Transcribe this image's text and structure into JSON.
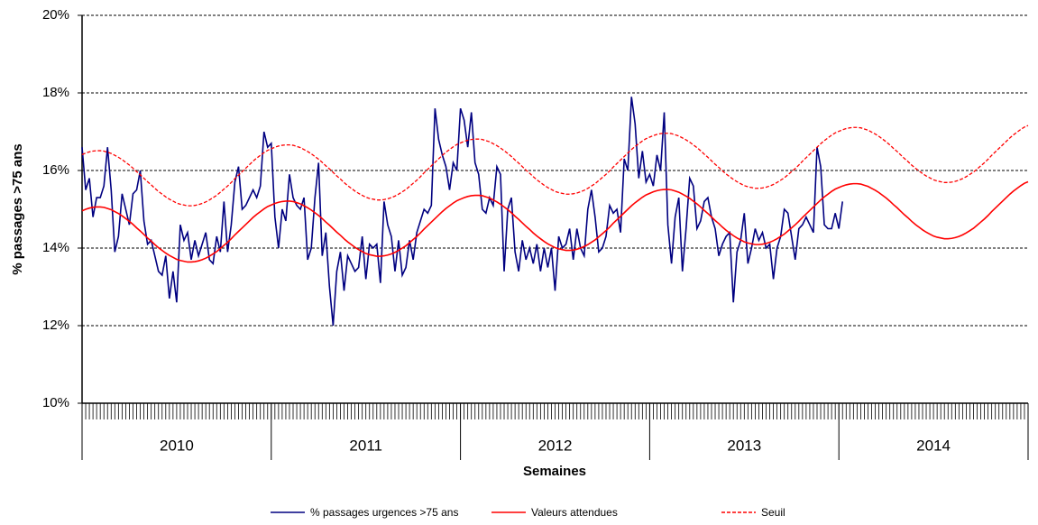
{
  "chart_data": {
    "type": "line",
    "y_label": "% passages >75 ans",
    "x_label": "Semaines",
    "x_group_labels": [
      "2010",
      "2011",
      "2012",
      "2013",
      "2014"
    ],
    "categories": [
      null,
      null,
      null,
      null,
      null,
      null,
      null,
      null,
      null,
      null,
      null,
      null,
      null,
      null,
      null,
      null,
      null,
      null,
      null,
      null,
      null,
      null,
      null,
      null,
      null,
      null,
      null,
      null,
      null,
      null,
      null,
      null,
      null,
      null,
      null,
      null,
      null,
      null,
      null,
      null,
      null,
      null,
      null,
      null,
      null,
      null,
      null,
      null,
      null,
      null,
      null,
      null,
      null,
      null,
      null,
      null,
      null,
      null,
      null,
      null,
      null,
      null,
      null,
      null,
      null,
      null,
      null,
      null,
      null,
      null,
      null,
      null,
      null,
      null,
      null,
      null,
      null,
      null,
      null,
      null,
      null,
      null,
      null,
      null,
      null,
      null,
      null,
      null,
      null,
      null,
      null,
      null,
      null,
      null,
      null,
      null,
      null,
      null,
      null,
      null,
      null,
      null,
      null,
      null,
      null,
      null,
      null,
      null,
      null,
      null,
      null,
      null,
      null,
      null,
      null,
      null,
      null,
      null,
      null,
      null,
      null,
      null,
      null,
      null,
      null,
      null,
      null,
      null,
      null,
      null,
      null,
      null,
      null,
      null,
      null,
      null,
      null,
      null,
      null,
      null,
      null,
      null,
      null,
      null,
      null,
      null,
      null,
      null,
      null,
      null,
      null,
      null,
      null,
      null,
      null,
      null,
      null,
      null,
      null,
      null,
      null,
      null,
      null,
      null,
      null,
      null,
      null,
      null,
      null,
      null,
      null,
      null,
      null,
      null,
      null,
      null,
      null,
      null,
      null,
      null,
      null,
      null,
      null,
      null,
      null,
      null,
      null,
      null,
      null,
      null,
      null,
      null,
      null,
      null,
      null,
      null,
      null,
      null,
      null,
      null,
      null,
      null,
      null,
      null,
      null,
      null,
      null,
      null,
      null,
      null,
      null,
      null,
      null,
      null,
      null,
      null,
      null,
      null,
      null,
      null,
      null,
      null,
      null,
      null,
      null,
      null,
      null,
      null,
      null,
      null,
      null,
      null,
      null,
      null,
      null,
      null,
      null,
      null,
      null,
      null,
      null,
      null,
      null,
      null,
      null,
      null,
      null,
      null,
      null,
      null,
      null,
      null,
      null,
      null,
      null,
      null,
      null,
      null,
      null,
      null,
      null
    ],
    "series": [
      {
        "name": "% passages urgences >75 ans",
        "color": "#000080",
        "dash": false,
        "values": [
          16.6,
          15.5,
          15.8,
          14.8,
          15.3,
          15.3,
          15.6,
          16.6,
          15.5,
          13.9,
          14.3,
          15.4,
          15.0,
          14.6,
          15.4,
          15.5,
          16.0,
          14.7,
          14.1,
          14.2,
          13.8,
          13.4,
          13.3,
          13.8,
          12.7,
          13.4,
          12.6,
          14.6,
          14.2,
          14.4,
          13.7,
          14.2,
          13.8,
          14.1,
          14.4,
          13.7,
          13.6,
          14.3,
          13.9,
          15.2,
          13.9,
          14.6,
          15.7,
          16.1,
          15.0,
          15.1,
          15.3,
          15.5,
          15.3,
          15.6,
          17.0,
          16.6,
          16.7,
          14.8,
          14.0,
          15.0,
          14.7,
          15.9,
          15.3,
          15.1,
          15.0,
          15.3,
          13.7,
          14.0,
          15.3,
          16.2,
          13.8,
          14.4,
          13.0,
          12.0,
          13.4,
          13.9,
          12.9,
          13.8,
          13.6,
          13.4,
          13.5,
          14.3,
          13.2,
          14.1,
          14.0,
          14.1,
          13.1,
          15.2,
          14.6,
          14.3,
          13.4,
          14.2,
          13.3,
          13.5,
          14.2,
          13.7,
          14.4,
          14.7,
          15.0,
          14.9,
          15.1,
          17.6,
          16.8,
          16.4,
          16.1,
          15.5,
          16.2,
          16.0,
          17.6,
          17.3,
          16.6,
          17.5,
          16.2,
          15.9,
          15.0,
          14.9,
          15.3,
          15.1,
          16.1,
          15.9,
          13.4,
          15.0,
          15.3,
          13.9,
          13.4,
          14.2,
          13.7,
          14.0,
          13.6,
          14.1,
          13.4,
          14.0,
          13.5,
          14.0,
          12.9,
          14.3,
          14.0,
          14.1,
          14.5,
          13.7,
          14.5,
          14.0,
          13.8,
          15.0,
          15.5,
          14.8,
          13.9,
          14.0,
          14.3,
          15.1,
          14.9,
          15.0,
          14.4,
          16.3,
          16.0,
          17.9,
          17.2,
          15.8,
          16.5,
          15.7,
          15.9,
          15.6,
          16.4,
          16.0,
          17.5,
          14.6,
          13.6,
          14.8,
          15.3,
          13.4,
          14.5,
          15.8,
          15.6,
          14.5,
          14.7,
          15.2,
          15.3,
          14.8,
          14.5,
          13.8,
          14.1,
          14.3,
          14.4,
          12.6,
          13.9,
          14.2,
          14.9,
          13.6,
          14.0,
          14.5,
          14.2,
          14.4,
          14.0,
          14.1,
          13.2,
          14.0,
          14.3,
          15.0,
          14.9,
          14.3,
          13.7,
          14.5,
          14.6,
          14.8,
          14.6,
          14.4,
          16.6,
          16.1,
          14.6,
          14.5,
          14.5,
          14.9,
          14.5,
          15.2,
          null,
          null,
          null,
          null,
          null,
          null,
          null,
          null,
          null,
          null,
          null,
          null,
          null,
          null,
          null,
          null,
          null,
          null,
          null,
          null,
          null,
          null,
          null,
          null,
          null,
          null,
          null,
          null,
          null,
          null,
          null,
          null,
          null,
          null,
          null,
          null,
          null,
          null,
          null,
          null,
          null,
          null,
          null,
          null,
          null,
          null,
          null,
          null,
          null,
          null,
          null
        ]
      },
      {
        "name": "Valeurs attendues",
        "color": "#ff0000",
        "dash": false,
        "values": [
          14.96,
          15.0,
          15.03,
          15.05,
          15.06,
          15.06,
          15.05,
          15.02,
          14.99,
          14.94,
          14.89,
          14.83,
          14.76,
          14.69,
          14.61,
          14.52,
          14.44,
          14.35,
          14.26,
          14.18,
          14.09,
          14.01,
          13.94,
          13.87,
          13.81,
          13.76,
          13.71,
          13.68,
          13.66,
          13.64,
          13.64,
          13.65,
          13.67,
          13.7,
          13.74,
          13.79,
          13.85,
          13.91,
          13.99,
          14.07,
          14.15,
          14.24,
          14.34,
          14.43,
          14.52,
          14.61,
          14.7,
          14.79,
          14.87,
          14.94,
          15.01,
          15.07,
          15.11,
          15.15,
          15.18,
          15.2,
          15.21,
          15.21,
          15.2,
          15.17,
          15.14,
          15.09,
          15.04,
          14.98,
          14.91,
          14.84,
          14.76,
          14.67,
          14.59,
          14.5,
          14.41,
          14.33,
          14.24,
          14.16,
          14.09,
          14.02,
          13.96,
          13.91,
          13.86,
          13.83,
          13.81,
          13.79,
          13.79,
          13.8,
          13.82,
          13.85,
          13.89,
          13.94,
          14.0,
          14.06,
          14.14,
          14.22,
          14.3,
          14.39,
          14.49,
          14.58,
          14.67,
          14.76,
          14.85,
          14.94,
          15.02,
          15.09,
          15.16,
          15.22,
          15.26,
          15.3,
          15.33,
          15.35,
          15.36,
          15.36,
          15.35,
          15.32,
          15.29,
          15.24,
          15.19,
          15.13,
          15.06,
          14.99,
          14.91,
          14.82,
          14.74,
          14.65,
          14.56,
          14.48,
          14.39,
          14.31,
          14.24,
          14.17,
          14.11,
          14.06,
          14.01,
          13.98,
          13.96,
          13.94,
          13.94,
          13.95,
          13.97,
          14.0,
          14.04,
          14.09,
          14.15,
          14.21,
          14.29,
          14.37,
          14.45,
          14.54,
          14.64,
          14.73,
          14.82,
          14.91,
          15.0,
          15.09,
          15.17,
          15.24,
          15.31,
          15.37,
          15.41,
          15.45,
          15.48,
          15.5,
          15.51,
          15.51,
          15.5,
          15.47,
          15.44,
          15.39,
          15.34,
          15.28,
          15.21,
          15.14,
          15.06,
          14.97,
          14.89,
          14.8,
          14.71,
          14.63,
          14.54,
          14.46,
          14.39,
          14.32,
          14.26,
          14.21,
          14.16,
          14.13,
          14.11,
          14.09,
          14.09,
          14.1,
          14.12,
          14.15,
          14.19,
          14.24,
          14.3,
          14.36,
          14.44,
          14.52,
          14.6,
          14.69,
          14.79,
          14.88,
          14.97,
          15.06,
          15.15,
          15.24,
          15.32,
          15.39,
          15.46,
          15.52,
          15.56,
          15.6,
          15.63,
          15.65,
          15.66,
          15.66,
          15.65,
          15.62,
          15.59,
          15.54,
          15.49,
          15.43,
          15.36,
          15.29,
          15.21,
          15.12,
          15.04,
          14.95,
          14.86,
          14.78,
          14.69,
          14.61,
          14.54,
          14.47,
          14.41,
          14.36,
          14.31,
          14.28,
          14.26,
          14.24,
          14.24,
          14.25,
          14.27,
          14.3,
          14.34,
          14.39,
          14.45,
          14.51,
          14.59,
          14.67,
          14.75,
          14.84,
          14.94,
          15.03,
          15.12,
          15.21,
          15.3,
          15.39,
          15.47,
          15.54,
          15.61,
          15.67,
          15.71
        ]
      },
      {
        "name": "Seuil",
        "color": "#ff0000",
        "dash": true,
        "values": [
          16.41,
          16.45,
          16.48,
          16.5,
          16.51,
          16.51,
          16.5,
          16.47,
          16.44,
          16.39,
          16.34,
          16.28,
          16.21,
          16.14,
          16.06,
          15.97,
          15.89,
          15.8,
          15.71,
          15.63,
          15.54,
          15.46,
          15.39,
          15.32,
          15.26,
          15.21,
          15.16,
          15.13,
          15.11,
          15.09,
          15.09,
          15.1,
          15.12,
          15.15,
          15.19,
          15.24,
          15.3,
          15.36,
          15.44,
          15.52,
          15.6,
          15.69,
          15.79,
          15.88,
          15.97,
          16.06,
          16.15,
          16.24,
          16.32,
          16.39,
          16.46,
          16.52,
          16.56,
          16.6,
          16.63,
          16.65,
          16.66,
          16.66,
          16.65,
          16.62,
          16.59,
          16.54,
          16.49,
          16.43,
          16.36,
          16.29,
          16.21,
          16.12,
          16.04,
          15.95,
          15.86,
          15.78,
          15.69,
          15.61,
          15.54,
          15.47,
          15.41,
          15.36,
          15.31,
          15.28,
          15.26,
          15.24,
          15.24,
          15.25,
          15.27,
          15.3,
          15.34,
          15.39,
          15.45,
          15.51,
          15.59,
          15.67,
          15.75,
          15.84,
          15.94,
          16.03,
          16.12,
          16.21,
          16.3,
          16.39,
          16.47,
          16.54,
          16.61,
          16.67,
          16.71,
          16.75,
          16.78,
          16.8,
          16.81,
          16.81,
          16.8,
          16.77,
          16.74,
          16.69,
          16.64,
          16.58,
          16.51,
          16.44,
          16.36,
          16.27,
          16.19,
          16.1,
          16.01,
          15.93,
          15.84,
          15.76,
          15.69,
          15.62,
          15.56,
          15.51,
          15.46,
          15.43,
          15.41,
          15.39,
          15.39,
          15.4,
          15.42,
          15.45,
          15.49,
          15.54,
          15.6,
          15.66,
          15.74,
          15.82,
          15.9,
          15.99,
          16.09,
          16.18,
          16.27,
          16.36,
          16.45,
          16.54,
          16.62,
          16.69,
          16.76,
          16.82,
          16.86,
          16.9,
          16.93,
          16.95,
          16.96,
          16.96,
          16.95,
          16.92,
          16.89,
          16.84,
          16.79,
          16.73,
          16.66,
          16.59,
          16.51,
          16.42,
          16.34,
          16.25,
          16.16,
          16.08,
          15.99,
          15.91,
          15.84,
          15.77,
          15.71,
          15.66,
          15.61,
          15.58,
          15.56,
          15.54,
          15.54,
          15.55,
          15.57,
          15.6,
          15.64,
          15.69,
          15.75,
          15.81,
          15.89,
          15.97,
          16.05,
          16.14,
          16.24,
          16.33,
          16.42,
          16.51,
          16.6,
          16.69,
          16.77,
          16.84,
          16.91,
          16.97,
          17.01,
          17.05,
          17.08,
          17.1,
          17.11,
          17.11,
          17.1,
          17.07,
          17.04,
          16.99,
          16.94,
          16.88,
          16.81,
          16.74,
          16.66,
          16.57,
          16.49,
          16.4,
          16.31,
          16.23,
          16.14,
          16.06,
          15.99,
          15.92,
          15.86,
          15.81,
          15.76,
          15.73,
          15.71,
          15.69,
          15.69,
          15.7,
          15.72,
          15.75,
          15.79,
          15.84,
          15.9,
          15.96,
          16.04,
          16.12,
          16.2,
          16.29,
          16.39,
          16.48,
          16.57,
          16.66,
          16.75,
          16.84,
          16.92,
          16.99,
          17.06,
          17.12,
          17.16
        ]
      }
    ],
    "ylim": [
      10,
      20
    ],
    "yticks": [
      {
        "value": 10,
        "label": "10%"
      },
      {
        "value": 12,
        "label": "12%"
      },
      {
        "value": 14,
        "label": "14%"
      },
      {
        "value": 16,
        "label": "16%"
      },
      {
        "value": 18,
        "label": "18%"
      },
      {
        "value": 20,
        "label": "20%"
      }
    ],
    "grid": true
  }
}
